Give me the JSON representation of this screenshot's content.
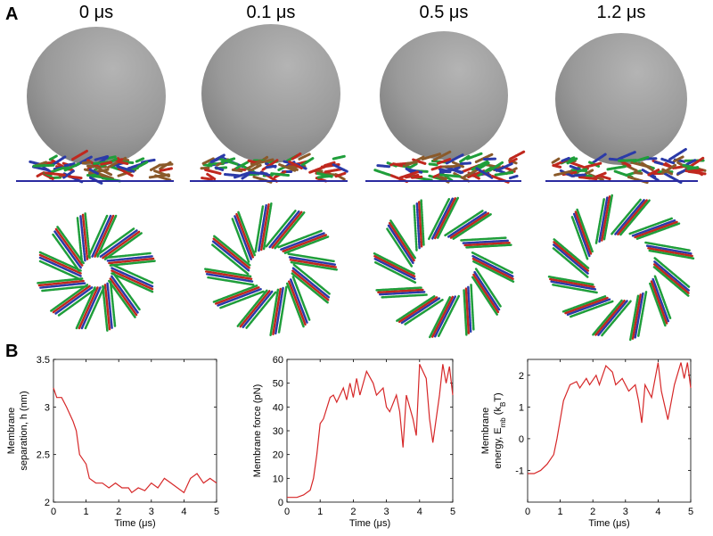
{
  "panel_labels": [
    "A",
    "B"
  ],
  "snapshots": [
    "0 μs",
    "0.1 μs",
    "0.5 μs",
    "1.2 μs"
  ],
  "chart_data": [
    {
      "type": "line",
      "x_label": "Time (μs)",
      "y_label": [
        [
          {
            "text": "Membrane"
          }
        ],
        [
          {
            "text": "separation, h (nm)"
          }
        ]
      ],
      "xlim": [
        0,
        5
      ],
      "xticks": [
        0,
        1,
        2,
        3,
        4,
        5
      ],
      "ylim": [
        2,
        3.5
      ],
      "yticks": [
        2,
        2.5,
        3,
        3.5
      ],
      "series": [
        {
          "color": "#d62728",
          "x": [
            0,
            0.1,
            0.25,
            0.4,
            0.6,
            0.7,
            0.8,
            1.0,
            1.1,
            1.3,
            1.5,
            1.7,
            1.9,
            2.1,
            2.3,
            2.4,
            2.6,
            2.8,
            3.0,
            3.2,
            3.4,
            3.6,
            3.8,
            4.0,
            4.2,
            4.4,
            4.6,
            4.8,
            5.0
          ],
          "values": [
            3.2,
            3.1,
            3.1,
            3.0,
            2.85,
            2.75,
            2.5,
            2.4,
            2.25,
            2.2,
            2.2,
            2.15,
            2.2,
            2.15,
            2.15,
            2.1,
            2.15,
            2.12,
            2.2,
            2.15,
            2.25,
            2.2,
            2.15,
            2.1,
            2.25,
            2.3,
            2.2,
            2.25,
            2.2
          ]
        }
      ]
    },
    {
      "type": "line",
      "x_label": "Time (μs)",
      "y_label": [
        [
          {
            "text": "Membrane force (pN)"
          }
        ]
      ],
      "xlim": [
        0,
        5
      ],
      "xticks": [
        0,
        1,
        2,
        3,
        4,
        5
      ],
      "ylim": [
        0,
        60
      ],
      "yticks": [
        0,
        10,
        20,
        30,
        40,
        50,
        60
      ],
      "series": [
        {
          "color": "#d62728",
          "x": [
            0,
            0.3,
            0.5,
            0.7,
            0.8,
            0.9,
            1.0,
            1.1,
            1.3,
            1.4,
            1.5,
            1.7,
            1.8,
            1.9,
            2.0,
            2.1,
            2.2,
            2.4,
            2.6,
            2.7,
            2.9,
            3.0,
            3.1,
            3.3,
            3.4,
            3.5,
            3.6,
            3.8,
            3.9,
            4.0,
            4.2,
            4.3,
            4.4,
            4.6,
            4.7,
            4.8,
            4.9,
            5.0
          ],
          "values": [
            2,
            2,
            3,
            5,
            10,
            20,
            33,
            35,
            44,
            45,
            42,
            48,
            43,
            50,
            44,
            52,
            45,
            55,
            50,
            45,
            48,
            40,
            38,
            45,
            38,
            23,
            45,
            35,
            28,
            58,
            52,
            35,
            25,
            45,
            58,
            50,
            57,
            45
          ]
        }
      ]
    },
    {
      "type": "line",
      "x_label": "Time (μs)",
      "y_label": [
        [
          {
            "text": "Membrane"
          }
        ],
        [
          {
            "text": "energy, E"
          },
          {
            "text": "mb",
            "sub": true
          },
          {
            "text": " (k"
          },
          {
            "text": "B",
            "sub": true
          },
          {
            "text": "T)"
          }
        ]
      ],
      "xlim": [
        0,
        5
      ],
      "xticks": [
        0,
        1,
        2,
        3,
        4,
        5
      ],
      "ylim": [
        -2,
        2.5
      ],
      "yticks": [
        -1,
        0,
        1,
        2
      ],
      "series": [
        {
          "color": "#d62728",
          "x": [
            0,
            0.2,
            0.4,
            0.6,
            0.8,
            0.9,
            1.0,
            1.1,
            1.3,
            1.5,
            1.6,
            1.8,
            1.9,
            2.1,
            2.2,
            2.4,
            2.6,
            2.7,
            2.9,
            3.1,
            3.3,
            3.4,
            3.5,
            3.6,
            3.8,
            4.0,
            4.1,
            4.3,
            4.5,
            4.7,
            4.8,
            4.9,
            5.0
          ],
          "values": [
            -1.1,
            -1.1,
            -1.0,
            -0.8,
            -0.5,
            0,
            0.6,
            1.2,
            1.7,
            1.8,
            1.6,
            1.9,
            1.7,
            2.0,
            1.7,
            2.3,
            2.1,
            1.7,
            1.9,
            1.5,
            1.7,
            1.2,
            0.5,
            1.7,
            1.3,
            2.4,
            1.5,
            0.6,
            1.7,
            2.4,
            1.9,
            2.4,
            1.6
          ]
        }
      ]
    }
  ]
}
